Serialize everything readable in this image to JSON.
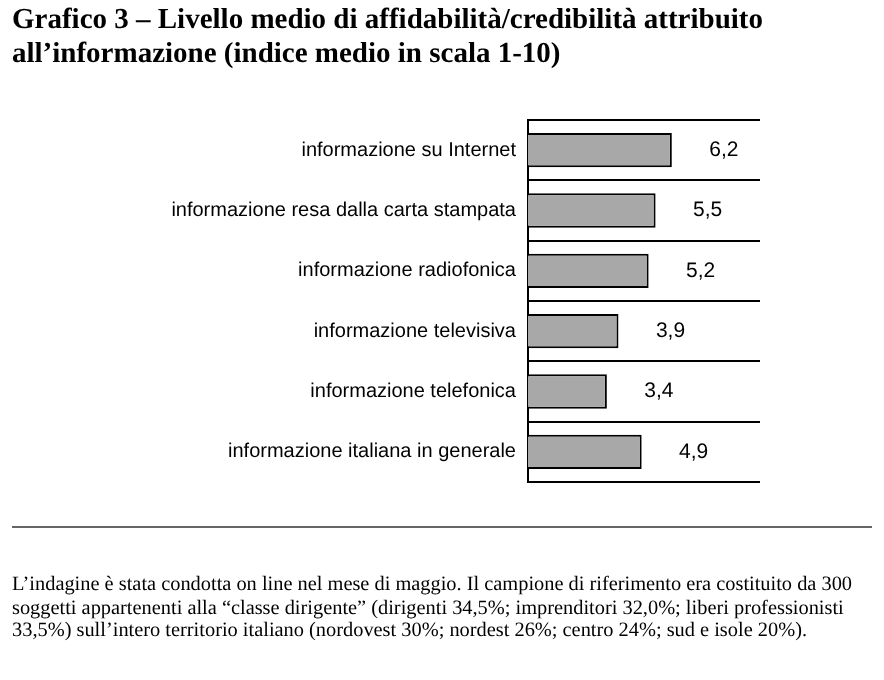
{
  "chart_data": {
    "type": "bar",
    "orientation": "horizontal",
    "title": "Grafico 3 – Livello medio di affidabilità/credibilità attribuito all’informazione (indice medio in scala 1-10)",
    "categories": [
      "informazione su Internet",
      "informazione resa dalla carta stampata",
      "informazione radiofonica",
      "informazione televisiva",
      "informazione telefonica",
      "informazione italiana in generale"
    ],
    "values": [
      6.2,
      5.5,
      5.2,
      3.9,
      3.4,
      4.9
    ],
    "value_labels": [
      "6,2",
      "5,5",
      "5,2",
      "3,9",
      "3,4",
      "4,9"
    ],
    "color": "#a8a8a8",
    "grid": "y",
    "annotations": [
      "L’indagine è stata condotta on line nel mese di maggio. Il campione di riferimento era costituito da 300 soggetti appartenenti alla “classe dirigente” (dirigenti 34,5%; imprenditori 32,0%; liberi professionisti 33,5%) sull’intero territorio italiano (nordovest 30%; nordest 26%; centro 24%; sud e isole 20%)."
    ]
  }
}
